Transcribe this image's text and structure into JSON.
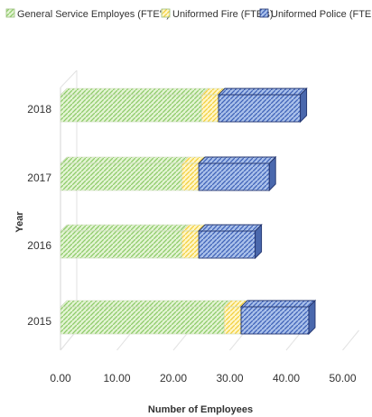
{
  "chart_data": {
    "type": "bar",
    "orientation": "horizontal",
    "stacked": true,
    "title": "",
    "xlabel": "Number of Employees",
    "ylabel": "Year",
    "categories": [
      "2015",
      "2016",
      "2017",
      "2018"
    ],
    "xlim": [
      0,
      50
    ],
    "x_ticks": [
      "0.00",
      "10.00",
      "20.00",
      "30.00",
      "40.00",
      "50.00"
    ],
    "grid": true,
    "legend_position": "top",
    "series": [
      {
        "name": "General Service Employes (FTE's)",
        "color": "#9bd47a",
        "values": [
          29.0,
          21.5,
          21.5,
          25.0
        ]
      },
      {
        "name": "Uniformed Fire (FTE's)",
        "color": "#ffe066",
        "values": [
          3.0,
          3.0,
          3.0,
          3.0
        ]
      },
      {
        "name": "Uniformed Police (FTE",
        "color": "#5b7fc7",
        "values": [
          12.0,
          10.0,
          12.5,
          14.5
        ]
      }
    ]
  }
}
